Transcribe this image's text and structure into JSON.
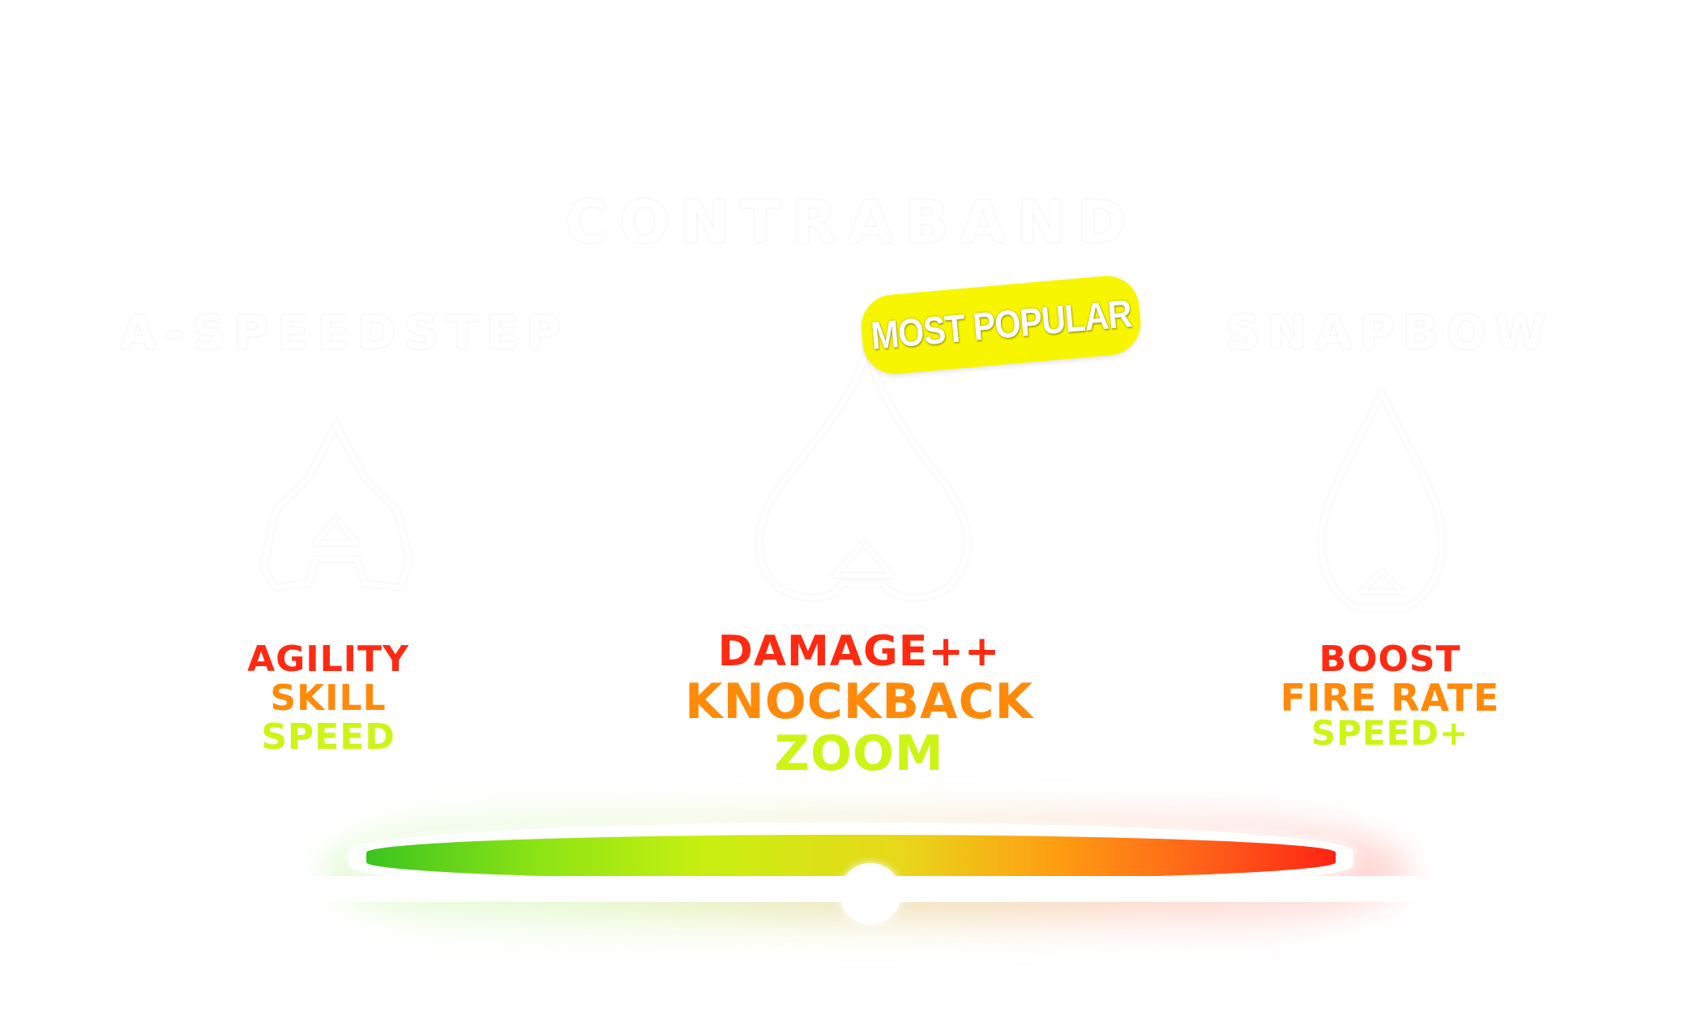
{
  "header": {
    "title": "CONTRABAND"
  },
  "badge": {
    "label": "MOST POPULAR",
    "color": "#f7f600"
  },
  "columns": [
    {
      "title": "A-SPEEDSTEP",
      "weapon_icon": "pistol-icon",
      "stats": [
        "AGILITY",
        "SKILL",
        "SPEED"
      ]
    },
    {
      "title": "",
      "weapon_icon": "rifle-icon",
      "stats": [
        "DAMAGE++",
        "KNOCKBACK",
        "ZOOM"
      ]
    },
    {
      "title": "SNAPBOW",
      "weapon_icon": "bow-icon",
      "stats": [
        "BOOST",
        "FIRE RATE",
        "SPEED+"
      ]
    }
  ],
  "stat_colors": [
    "#ff2a12",
    "#ff8a0a",
    "#ccf515"
  ],
  "slider": {
    "value": 0.52,
    "gradient": [
      "#3bc41f",
      "#c8ef10",
      "#ff9a12",
      "#ff2414"
    ]
  }
}
